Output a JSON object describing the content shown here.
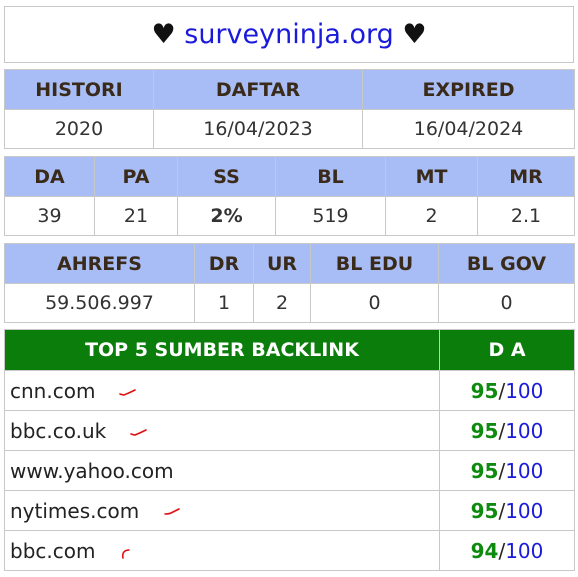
{
  "title": {
    "heart_left": "♥",
    "site": "surveyninja.org",
    "heart_right": "♥"
  },
  "table1": {
    "headers": [
      "HISTORI",
      "DAFTAR",
      "EXPIRED"
    ],
    "values": [
      "2020",
      "16/04/2023",
      "16/04/2024"
    ]
  },
  "table2": {
    "headers": [
      "DA",
      "PA",
      "SS",
      "BL",
      "MT",
      "MR"
    ],
    "values": [
      "39",
      "21",
      "2%",
      "519",
      "2",
      "2.1"
    ]
  },
  "table3": {
    "headers": [
      "AHREFS",
      "DR",
      "UR",
      "BL EDU",
      "BL GOV"
    ],
    "values": [
      "59.506.997",
      "1",
      "2",
      "0",
      "0"
    ]
  },
  "backlinks": {
    "header_source": "TOP 5 SUMBER BACKLINK",
    "header_da": "D A",
    "rows": [
      {
        "domain": "cnn.com",
        "da": "95",
        "max": "100"
      },
      {
        "domain": "bbc.co.uk",
        "da": "95",
        "max": "100"
      },
      {
        "domain": "www.yahoo.com",
        "da": "95",
        "max": "100"
      },
      {
        "domain": "nytimes.com",
        "da": "95",
        "max": "100"
      },
      {
        "domain": "bbc.com",
        "da": "94",
        "max": "100"
      }
    ]
  },
  "colors": {
    "header_blue": "#a8bdf5",
    "header_green": "#0b7d0b",
    "link_blue": "#1a1adb",
    "value_green": "#0e8a0e",
    "check_red": "#e01010"
  },
  "icons": {
    "check": "red-check-mark-icon"
  }
}
